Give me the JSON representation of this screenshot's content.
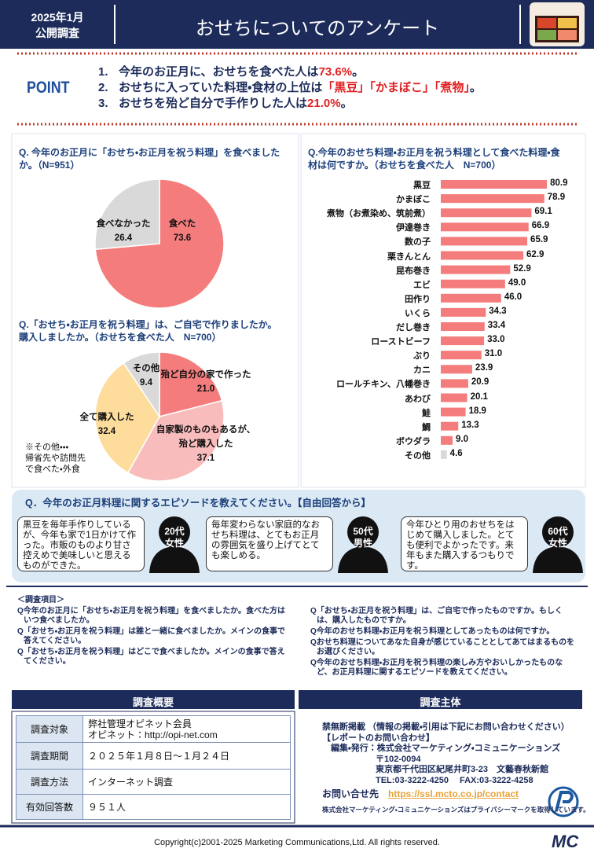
{
  "header": {
    "date": "2025年1月",
    "label": "公開調査",
    "title": "おせちについてのアンケート"
  },
  "point_label": "POINT",
  "points": [
    {
      "number": "1.",
      "text": "今年のお正月に、おせちを食べた人は",
      "highlight": "73.6%",
      "after": "。"
    },
    {
      "number": "2.",
      "text": "おせちに入っていた料理・食材の上位は",
      "highlight": "「黒豆」「かまぼこ」「煮物」",
      "after": "。"
    },
    {
      "number": "3.",
      "text": "おせちを殆ど自分で手作りした人は",
      "highlight": "21.0%",
      "after": "。"
    }
  ],
  "chart_data": [
    {
      "type": "pie",
      "title": "Q. 今年のお正月に「おせち・お正月を祝う料理」を食べましたか。（N=951）",
      "categories": [
        "食べた",
        "食べなかった"
      ],
      "values": [
        73.6,
        26.4
      ],
      "colors": [
        "#f47c7c",
        "#d9d9d9"
      ]
    },
    {
      "type": "pie",
      "title": "Q.「おせち・お正月を祝う料理」は、ご自宅で作りましたか。購入しましたか。（おせちを食べた人　N=700）",
      "categories": [
        "殆ど自分の家で作った",
        "自家製のものもあるが、\n殆ど購入した",
        "全て購入した",
        "その他"
      ],
      "values": [
        21.0,
        37.1,
        32.4,
        9.4
      ],
      "value_labels": [
        "21.0",
        "37.1",
        "32.4",
        "9.4"
      ],
      "colors": [
        "#f47c7c",
        "#f9bcbc",
        "#fddc9c",
        "#d9d9d9"
      ],
      "note": "※その他・・・\n帰省先や訪問先\nで食べた・外食"
    },
    {
      "type": "barh",
      "title": "Q.今年のおせち料理・お正月を祝う料理として食べた料理・食材は何ですか。（おせちを食べた人　N=700）",
      "categories": [
        "黒豆",
        "かまぼこ",
        "煮物（お煮染め、筑前煮）",
        "伊達巻き",
        "数の子",
        "栗きんとん",
        "昆布巻き",
        "エビ",
        "田作り",
        "いくら",
        "だし巻き",
        "ローストビーフ",
        "ぶり",
        "カニ",
        "ロールチキン、八幡巻き",
        "あわび",
        "鮭",
        "鯛",
        "ボウダラ",
        "その他"
      ],
      "values": [
        80.9,
        78.9,
        69.1,
        66.9,
        65.9,
        62.9,
        52.9,
        49.0,
        46.0,
        34.3,
        33.4,
        33.0,
        31.0,
        23.9,
        20.9,
        20.1,
        18.9,
        13.3,
        9.0,
        4.6
      ],
      "value_labels": [
        "80.9",
        "78.9",
        "69.1",
        "66.9",
        "65.9",
        "62.9",
        "52.9",
        "49.0",
        "46.0",
        "34.3",
        "33.4",
        "33.0",
        "31.0",
        "23.9",
        "20.9",
        "20.1",
        "18.9",
        "13.3",
        "9.0",
        "4.6"
      ],
      "color": "#f47c7c",
      "other_color": "#d9d9d9"
    }
  ],
  "episodes": {
    "title": "Q．今年のお正月料理に関するエピソードを教えてください。【自由回答から】",
    "items": [
      {
        "text": "黒豆を毎年手作りしているが、今年も家で1日かけて作った。市販のものより甘さ控えめで美味しいと思えるものができた。",
        "person": "20代\n女性"
      },
      {
        "text": "毎年変わらない家庭的なおせち料理は、とてもお正月の雰囲気を盛り上げてとても楽しめる。",
        "person": "50代\n男性"
      },
      {
        "text": "今年ひとり用のおせちをはじめて購入しました。とても便利でよかったです。来年もまた購入するつもりです。",
        "person": "60代\n女性"
      }
    ]
  },
  "survey_items": {
    "title": "＜調査項目＞",
    "left": [
      "Q今年のお正月に「おせち・お正月を祝う料理」を食べましたか。食べた方はいつ食べましたか。",
      "Q「おせち・お正月を祝う料理」は誰と一緒に食べましたか。メインの食事で答えてください。",
      "Q「おせち・お正月を祝う料理」はどこで食べましたか。メインの食事で答えてください。"
    ],
    "right": [
      "Q「おせち・お正月を祝う料理」は、ご自宅で作ったものですか。もしくは、購入したものですか。",
      "Q今年のおせち料理・お正月を祝う料理としてあったものは何ですか。",
      "Qおせち料理についてあなた自身が感じていることとしてあてはまるものをお選びください。",
      "Q今年のおせち料理・お正月を祝う料理の楽しみ方やおいしかったものなど、お正月料理に関するエピソードを教えてください。"
    ]
  },
  "overview": {
    "title": "調査概要",
    "rows": [
      [
        "調査対象",
        "弊社管理オピネット会員\nオピネット：http://opi-net.com"
      ],
      [
        "調査期間",
        "２０２５年１月８日～１月２４日"
      ],
      [
        "調査方法",
        "インターネット調査"
      ],
      [
        "有効回答数",
        "９５１人"
      ]
    ]
  },
  "organizer": {
    "title": "調査主体",
    "lines": [
      "禁無断掲載 （情報の掲載・引用は下記にお問い合わせください）",
      "【レポートのお問い合わせ】",
      "　編集・発行：株式会社マーケティング・コミュニケーションズ",
      "〒102-0094",
      "東京都千代田区紀尾井町3-23　文藝春秋新館",
      "TEL:03-3222-4250　 FAX:03-3222-4258"
    ],
    "contact_label": "お問い合せ先",
    "contact_url": "https://ssl.mcto.co.jp/contact",
    "privacy": "株式会社マーケティング・コミュニケーションズはプライバシーマークを取得しています。"
  },
  "footer": {
    "copyright": "Copyright(c)2001-2025 Marketing Communications,Ltd. All rights reserved.",
    "logo": "MC"
  }
}
